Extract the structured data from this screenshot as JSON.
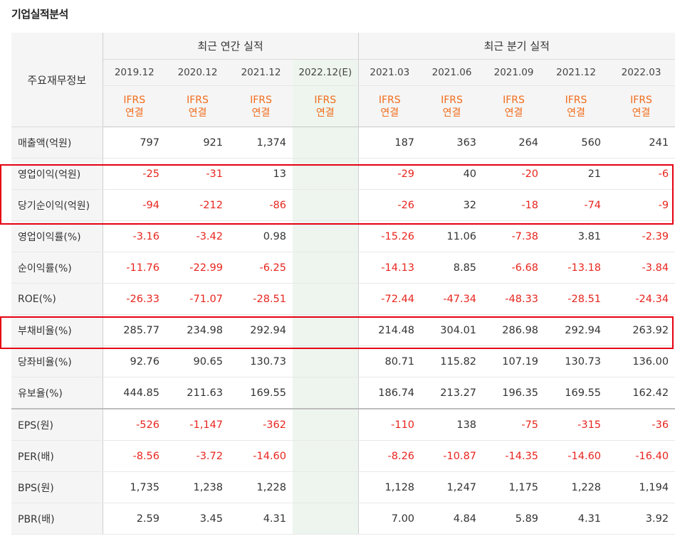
{
  "title": "기업실적분석",
  "header": {
    "row_label": "주요재무정보",
    "annual_group": "최근 연간 실적",
    "quarterly_group": "최근 분기 실적",
    "periods": [
      "2019.12",
      "2020.12",
      "2021.12",
      "2022.12(E)",
      "2021.03",
      "2021.06",
      "2021.09",
      "2021.12",
      "2022.03"
    ],
    "ifrs_line1": "IFRS",
    "ifrs_line2": "연결"
  },
  "rows": [
    {
      "label": "매출액(억원)",
      "values": [
        "797",
        "921",
        "1,374",
        "",
        "187",
        "363",
        "264",
        "560",
        "241"
      ]
    },
    {
      "label": "영업이익(억원)",
      "values": [
        "-25",
        "-31",
        "13",
        "",
        "-29",
        "40",
        "-20",
        "21",
        "-6"
      ]
    },
    {
      "label": "당기순이익(억원)",
      "values": [
        "-94",
        "-212",
        "-86",
        "",
        "-26",
        "32",
        "-18",
        "-74",
        "-9"
      ]
    },
    {
      "label": "영업이익률(%)",
      "values": [
        "-3.16",
        "-3.42",
        "0.98",
        "",
        "-15.26",
        "11.06",
        "-7.38",
        "3.81",
        "-2.39"
      ]
    },
    {
      "label": "순이익률(%)",
      "values": [
        "-11.76",
        "-22.99",
        "-6.25",
        "",
        "-14.13",
        "8.85",
        "-6.68",
        "-13.18",
        "-3.84"
      ]
    },
    {
      "label": "ROE(%)",
      "values": [
        "-26.33",
        "-71.07",
        "-28.51",
        "",
        "-72.44",
        "-47.34",
        "-48.33",
        "-28.51",
        "-24.34"
      ]
    },
    {
      "label": "부채비율(%)",
      "values": [
        "285.77",
        "234.98",
        "292.94",
        "",
        "214.48",
        "304.01",
        "286.98",
        "292.94",
        "263.92"
      ]
    },
    {
      "label": "당좌비율(%)",
      "values": [
        "92.76",
        "90.65",
        "130.73",
        "",
        "80.71",
        "115.82",
        "107.19",
        "130.73",
        "136.00"
      ]
    },
    {
      "label": "유보율(%)",
      "values": [
        "444.85",
        "211.63",
        "169.55",
        "",
        "186.74",
        "213.27",
        "196.35",
        "169.55",
        "162.42"
      ]
    },
    {
      "label": "EPS(원)",
      "values": [
        "-526",
        "-1,147",
        "-362",
        "",
        "-110",
        "138",
        "-75",
        "-315",
        "-36"
      ]
    },
    {
      "label": "PER(배)",
      "values": [
        "-8.56",
        "-3.72",
        "-14.60",
        "",
        "-8.26",
        "-10.87",
        "-14.35",
        "-14.60",
        "-16.40"
      ]
    },
    {
      "label": "BPS(원)",
      "values": [
        "1,735",
        "1,238",
        "1,228",
        "",
        "1,128",
        "1,247",
        "1,175",
        "1,228",
        "1,194"
      ]
    },
    {
      "label": "PBR(배)",
      "values": [
        "2.59",
        "3.45",
        "4.31",
        "",
        "7.00",
        "4.84",
        "5.89",
        "4.31",
        "3.92"
      ]
    }
  ],
  "colors": {
    "negative": "#e8251e",
    "ifrs": "#f26c1b",
    "highlight": "#e60012",
    "estimate_bg": "#edf5ee"
  }
}
